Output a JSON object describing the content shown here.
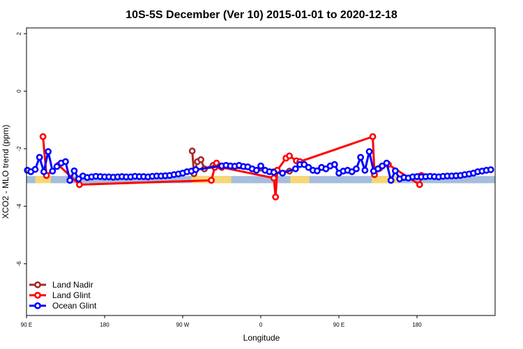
{
  "chart_data": {
    "type": "line",
    "title": "10S-5S December (Ver 10)   2015-01-01 to 2020-12-18",
    "xlabel": "Longitude",
    "ylabel": "XCO2 - MLO trend (ppm)",
    "xlim": [
      -90,
      180
    ],
    "ylim": [
      -7.8,
      2.2
    ],
    "x_ticks": [
      {
        "value": -90,
        "label": "90 E"
      },
      {
        "value": -45,
        "label": "180"
      },
      {
        "value": 0,
        "label": "90 W"
      },
      {
        "value": 45,
        "label": "0"
      },
      {
        "value": 90,
        "label": "90 E"
      },
      {
        "value": 135,
        "label": "180"
      }
    ],
    "y_ticks": [
      {
        "value": 2,
        "label": "2"
      },
      {
        "value": 0,
        "label": "0"
      },
      {
        "value": -2,
        "label": "-2"
      },
      {
        "value": -4,
        "label": "-4"
      },
      {
        "value": -6,
        "label": "-6"
      }
    ],
    "grid": false,
    "legend_position": "bottom-left",
    "background_band": {
      "y_range": [
        -3.2,
        -2.95
      ],
      "ocean_color": "#a6bddb",
      "land_color": "#f7d774",
      "land_x_ranges": [
        [
          -85,
          -76
        ],
        [
          5,
          28
        ],
        [
          62,
          73
        ],
        [
          109,
          124
        ]
      ]
    },
    "series": [
      {
        "name": "Land Nadir",
        "color": "#a52a2a",
        "x": [
          5.5,
          6.5,
          8.5,
          10.5,
          12.5,
          17.5,
          52.5,
          61.5
        ],
        "y": [
          -2.08,
          -2.87,
          -2.45,
          -2.38,
          -2.7,
          -2.58,
          -2.8,
          -2.78
        ]
      },
      {
        "name": "Land Glint",
        "color": "#ff0000",
        "x": [
          -80.5,
          -78.5,
          -71.5,
          -59.5,
          16.5,
          18.5,
          19.5,
          21.5,
          22.5,
          52.5,
          53.5,
          54.5,
          59.5,
          61.5,
          65.5,
          67.5,
          109.5,
          110.5,
          113.5,
          118.5,
          136.5,
          137.5
        ],
        "y": [
          -1.58,
          -2.93,
          -2.57,
          -3.25,
          -3.1,
          -2.65,
          -2.5,
          -2.6,
          -2.65,
          -3.02,
          -3.68,
          -2.75,
          -2.33,
          -2.25,
          -2.42,
          -2.45,
          -1.58,
          -2.9,
          -2.68,
          -2.55,
          -3.25,
          -2.93
        ]
      },
      {
        "name": "Ocean Glint",
        "color": "#0000ff",
        "x": [
          -89.5,
          -87.5,
          -85,
          -82.5,
          -80,
          -77.5,
          -75,
          -72.5,
          -70,
          -67.5,
          -65,
          -62.5,
          -60,
          -57.5,
          -55,
          -52.5,
          -50,
          -47.5,
          -45,
          -42.5,
          -40,
          -37.5,
          -35,
          -32.5,
          -30,
          -27.5,
          -25,
          -22.5,
          -20,
          -17.5,
          -15,
          -12.5,
          -10,
          -7.5,
          -5,
          -2.5,
          0,
          2.5,
          5,
          7.5,
          22.5,
          25,
          27.5,
          30,
          32.5,
          35,
          37.5,
          40,
          42.5,
          45,
          47.5,
          50,
          52.5,
          57.5,
          65,
          67.5,
          70,
          72.5,
          75,
          77.5,
          80,
          82.5,
          85,
          87.5,
          90,
          92.5,
          95,
          97.5,
          100,
          102.5,
          105,
          107.5,
          110,
          112.5,
          115,
          117.5,
          120,
          122.5,
          125,
          127.5,
          130,
          132.5,
          135,
          137.5,
          140,
          142.5,
          145,
          147.5,
          150,
          152.5,
          155,
          157.5,
          160,
          162.5,
          165,
          167.5,
          170,
          172.5,
          175,
          177.5
        ],
        "y": [
          -2.75,
          -2.8,
          -2.72,
          -2.3,
          -2.8,
          -2.1,
          -2.78,
          -2.62,
          -2.5,
          -2.45,
          -3.1,
          -2.77,
          -3.05,
          -2.95,
          -3.0,
          -2.98,
          -2.96,
          -2.97,
          -2.98,
          -2.98,
          -2.99,
          -2.98,
          -2.97,
          -2.98,
          -2.98,
          -2.96,
          -2.97,
          -2.97,
          -2.98,
          -2.96,
          -2.95,
          -2.95,
          -2.94,
          -2.93,
          -2.9,
          -2.88,
          -2.85,
          -2.8,
          -2.78,
          -2.73,
          -2.6,
          -2.58,
          -2.6,
          -2.61,
          -2.58,
          -2.62,
          -2.63,
          -2.7,
          -2.75,
          -2.6,
          -2.75,
          -2.8,
          -2.82,
          -2.85,
          -2.7,
          -2.55,
          -2.55,
          -2.65,
          -2.75,
          -2.77,
          -2.65,
          -2.7,
          -2.6,
          -2.55,
          -2.85,
          -2.78,
          -2.75,
          -2.8,
          -2.7,
          -2.3,
          -2.75,
          -2.1,
          -2.78,
          -2.7,
          -2.6,
          -2.5,
          -3.1,
          -2.77,
          -3.05,
          -3.0,
          -3.02,
          -2.98,
          -2.97,
          -2.98,
          -2.97,
          -2.96,
          -2.97,
          -2.98,
          -2.96,
          -2.95,
          -2.95,
          -2.94,
          -2.93,
          -2.9,
          -2.88,
          -2.85,
          -2.8,
          -2.78,
          -2.75,
          -2.73
        ]
      }
    ]
  }
}
